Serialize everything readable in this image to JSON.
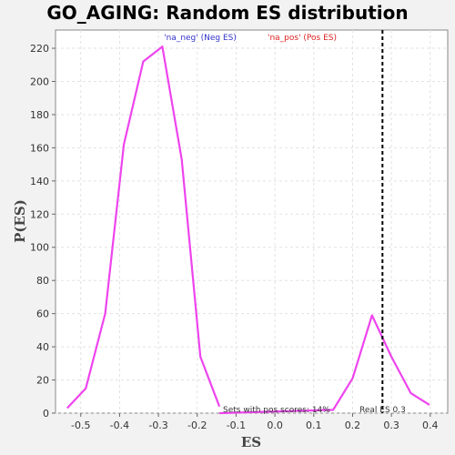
{
  "chart_data": {
    "type": "line",
    "title": "GO_AGING: Random ES distribution",
    "xlabel": "ES",
    "ylabel": "P(ES)",
    "xlim": [
      -0.565,
      0.445
    ],
    "ylim": [
      0,
      231
    ],
    "xticks": [
      -0.5,
      -0.4,
      -0.3,
      -0.2,
      -0.1,
      0.0,
      0.1,
      0.2,
      0.3,
      0.4
    ],
    "xtick_labels": [
      "-0.5",
      "-0.4",
      "-0.3",
      "-0.2",
      "-0.1",
      "0.0",
      "0.1",
      "0.2",
      "0.3",
      "0.4"
    ],
    "yticks": [
      0,
      20,
      40,
      60,
      80,
      100,
      120,
      140,
      160,
      180,
      200,
      220
    ],
    "grid": true,
    "series": [
      {
        "name": "'na_neg' (Neg ES)",
        "color": "#ee44ee",
        "x": [
          -0.535,
          -0.487,
          -0.437,
          -0.389,
          -0.339,
          -0.29,
          -0.24,
          -0.192,
          -0.143
        ],
        "y": [
          3,
          15,
          60,
          162,
          212,
          221,
          153,
          34,
          4
        ]
      },
      {
        "name": "'na_pos' (Pos ES)",
        "color": "#ee44ee",
        "x": [
          -0.143,
          0.15,
          0.2,
          0.25,
          0.3,
          0.35,
          0.398
        ],
        "y": [
          0,
          2,
          21,
          59,
          34,
          12,
          5
        ]
      }
    ],
    "legend": [
      {
        "label": "'na_neg' (Neg ES)",
        "color": "#3333cc"
      },
      {
        "label": "'na_pos' (Pos ES)",
        "color": "#dd2222"
      }
    ],
    "legend_position": "top",
    "real_es": {
      "value": 0.277,
      "label": "Real ES 0.3"
    },
    "annotation": "Sets with pos scores: 14%"
  }
}
